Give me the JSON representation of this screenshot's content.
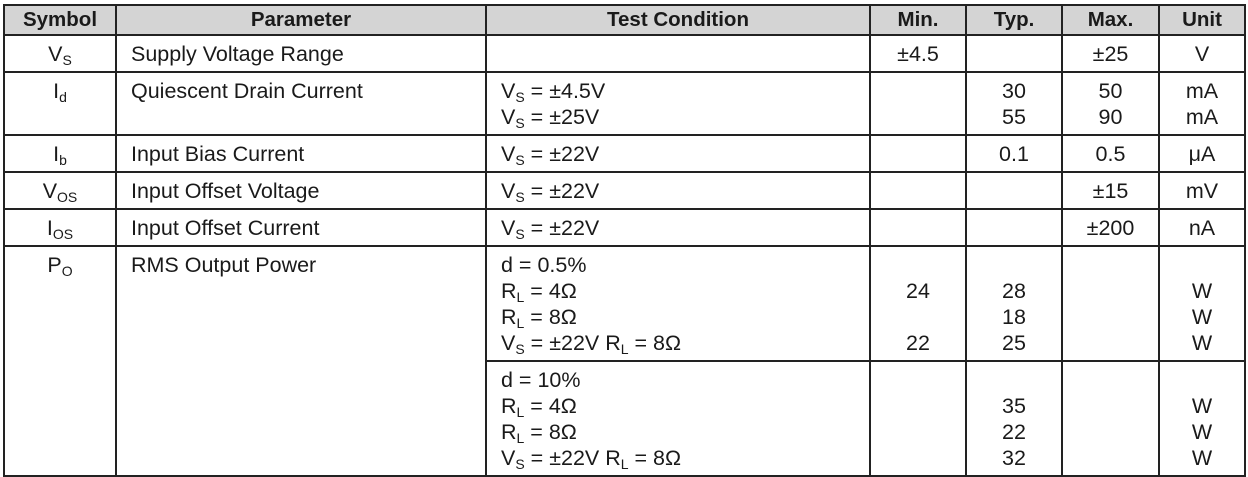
{
  "headers": [
    "Symbol",
    "Parameter",
    "Test Condition",
    "Min.",
    "Typ.",
    "Max.",
    "Unit"
  ],
  "rows": [
    {
      "symbol": {
        "main": "V",
        "sub": "S"
      },
      "parameter": "Supply Voltage Range",
      "cells": [
        {
          "conditions": [],
          "min": [
            "±4.5"
          ],
          "typ": [],
          "max": [
            "±25"
          ],
          "unit": [
            "V"
          ]
        }
      ]
    },
    {
      "symbol": {
        "main": "I",
        "sub": "d"
      },
      "parameter": "Quiescent Drain Current",
      "cells": [
        {
          "conditions": [
            [
              {
                "t": "V"
              },
              {
                "sub": "S"
              },
              {
                "t": " = ±4.5V"
              }
            ],
            [
              {
                "t": "V"
              },
              {
                "sub": "S"
              },
              {
                "t": " = ±25V"
              }
            ]
          ],
          "min": [],
          "typ": [
            "30",
            "55"
          ],
          "max": [
            "50",
            "90"
          ],
          "unit": [
            "mA",
            "mA"
          ]
        }
      ]
    },
    {
      "symbol": {
        "main": "I",
        "sub": "b"
      },
      "parameter": "Input Bias Current",
      "cells": [
        {
          "conditions": [
            [
              {
                "t": "V"
              },
              {
                "sub": "S"
              },
              {
                "t": " = ±22V"
              }
            ]
          ],
          "min": [],
          "typ": [
            "0.1"
          ],
          "max": [
            "0.5"
          ],
          "unit": [
            "μA"
          ]
        }
      ]
    },
    {
      "symbol": {
        "main": "V",
        "sub": "OS"
      },
      "parameter": "Input Offset Voltage",
      "cells": [
        {
          "conditions": [
            [
              {
                "t": "V"
              },
              {
                "sub": "S"
              },
              {
                "t": " = ±22V"
              }
            ]
          ],
          "min": [],
          "typ": [],
          "max": [
            "±15"
          ],
          "unit": [
            "mV"
          ]
        }
      ]
    },
    {
      "symbol": {
        "main": "I",
        "sub": "OS"
      },
      "parameter": "Input Offset Current",
      "cells": [
        {
          "conditions": [
            [
              {
                "t": "V"
              },
              {
                "sub": "S"
              },
              {
                "t": " = ±22V"
              }
            ]
          ],
          "min": [],
          "typ": [],
          "max": [
            "±200"
          ],
          "unit": [
            "nA"
          ]
        }
      ]
    },
    {
      "symbol": {
        "main": "P",
        "sub": "O"
      },
      "parameter": "RMS Output Power",
      "cells": [
        {
          "conditions": [
            [
              {
                "t": "d = 0.5%"
              }
            ],
            [
              {
                "t": "R"
              },
              {
                "sub": "L"
              },
              {
                "t": " = 4Ω"
              }
            ],
            [
              {
                "t": "R"
              },
              {
                "sub": "L"
              },
              {
                "t": " = 8Ω"
              }
            ],
            [
              {
                "t": "V"
              },
              {
                "sub": "S"
              },
              {
                "t": " = ±22V R"
              },
              {
                "sub": "L"
              },
              {
                "t": " = 8Ω"
              }
            ]
          ],
          "min": [
            "",
            "24",
            "",
            "22"
          ],
          "typ": [
            "",
            "28",
            "18",
            "25"
          ],
          "max": [],
          "unit": [
            "",
            "W",
            "W",
            "W"
          ]
        },
        {
          "conditions": [
            [
              {
                "t": "d = 10%"
              }
            ],
            [
              {
                "t": "R"
              },
              {
                "sub": "L"
              },
              {
                "t": " = 4Ω"
              }
            ],
            [
              {
                "t": "R"
              },
              {
                "sub": "L"
              },
              {
                "t": " = 8Ω"
              }
            ],
            [
              {
                "t": "V"
              },
              {
                "sub": "S"
              },
              {
                "t": " = ±22V R"
              },
              {
                "sub": "L"
              },
              {
                "t": " = 8Ω"
              }
            ]
          ],
          "min": [],
          "typ": [
            "",
            "35",
            "22",
            "32"
          ],
          "max": [],
          "unit": [
            "",
            "W",
            "W",
            "W"
          ]
        }
      ]
    }
  ]
}
